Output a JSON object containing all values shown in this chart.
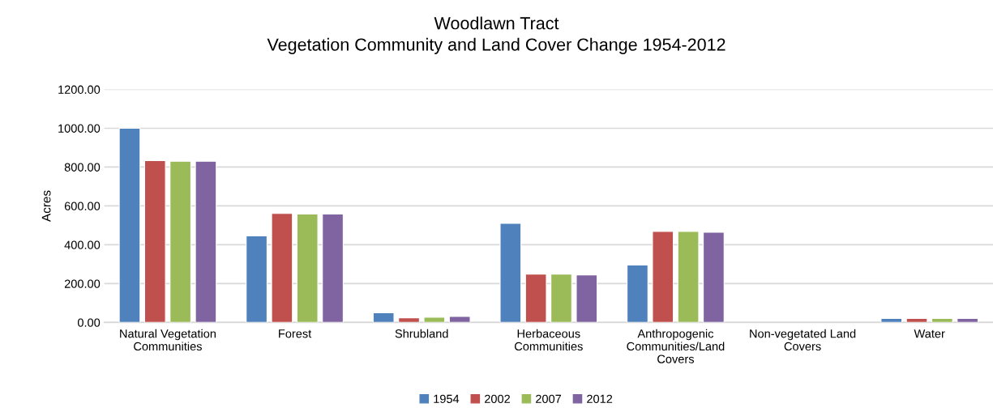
{
  "chart_data": {
    "type": "bar",
    "title": "Woodlawn Tract\nVegetation Community and Land Cover Change 1954-2012",
    "ylabel": "Acres",
    "categories": [
      "Natural Vegetation\nCommunities",
      "Forest",
      "Shrubland",
      "Herbaceous\nCommunities",
      "Anthropogenic\nCommunities/Land\nCovers",
      "Non-vegetated Land\nCovers",
      "Water"
    ],
    "series": [
      {
        "name": "1954",
        "color": "#4f81bd",
        "values": [
          1000,
          446,
          50,
          510,
          296,
          0,
          20
        ]
      },
      {
        "name": "2002",
        "color": "#c0504d",
        "values": [
          833,
          561,
          24,
          249,
          469,
          0,
          20
        ]
      },
      {
        "name": "2007",
        "color": "#9bbb59",
        "values": [
          830,
          558,
          27,
          249,
          469,
          0,
          20
        ]
      },
      {
        "name": "2012",
        "color": "#8064a2",
        "values": [
          830,
          558,
          31,
          245,
          464,
          0,
          20
        ]
      }
    ],
    "ylim": [
      0,
      1200
    ],
    "yticks": [
      {
        "value": 0,
        "label": "0.00"
      },
      {
        "value": 200,
        "label": "200.00"
      },
      {
        "value": 400,
        "label": "400.00"
      },
      {
        "value": 600,
        "label": "600.00"
      },
      {
        "value": 800,
        "label": "800.00"
      },
      {
        "value": 1000,
        "label": "1000.00"
      },
      {
        "value": 1200,
        "label": "1200.00"
      }
    ],
    "grid": "y",
    "legend": "bottom"
  }
}
